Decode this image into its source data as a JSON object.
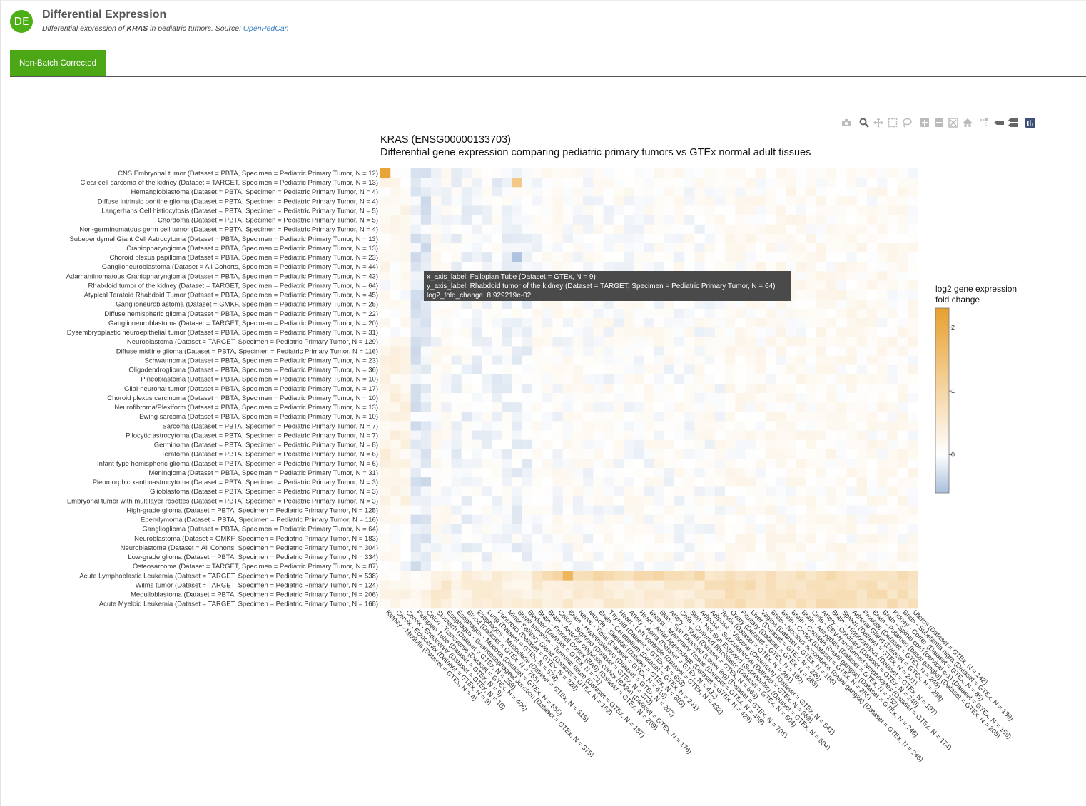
{
  "header": {
    "avatar_initials": "DE",
    "title": "Differential Expression",
    "subtitle_prefix": "Differential expression of ",
    "subtitle_gene": "KRAS",
    "subtitle_middle": " in pediatric tumors. Source: ",
    "subtitle_source": "OpenPedCan"
  },
  "tabs": [
    {
      "label": "Non-Batch Corrected",
      "active": true
    }
  ],
  "toolbar": {
    "icons": [
      "camera-icon",
      "zoom-icon",
      "pan-icon",
      "box-select-icon",
      "lasso-select-icon",
      "zoom-in-icon",
      "zoom-out-icon",
      "autoscale-icon",
      "reset-axes-icon",
      "spike-lines-icon",
      "hover-closest-icon",
      "hover-compare-icon",
      "plotly-logo-icon"
    ]
  },
  "colors": {
    "accent": "#4ca716",
    "high": "#e8a02f",
    "low": "#a9bfdc",
    "tooltip_bg": "#444444"
  },
  "chart_data": {
    "type": "heatmap",
    "title_line1": "KRAS (ENSG00000133703)",
    "title_line2": "Differential gene expression comparing pediatric primary tumors vs GTEx normal adult tissues",
    "colorbar": {
      "title_line1": "log2 gene expression",
      "title_line2": "fold change",
      "ticks": [
        0,
        1,
        2
      ],
      "range": [
        -0.6,
        2.3
      ]
    },
    "y_labels": [
      "CNS Embryonal tumor (Dataset = PBTA, Specimen = Pediatric Primary Tumor, N = 12)",
      "Clear cell sarcoma of the kidney (Dataset = TARGET, Specimen = Pediatric Primary Tumor, N = 13)",
      "Hemangioblastoma (Dataset = PBTA, Specimen = Pediatric Primary Tumor, N = 4)",
      "Diffuse intrinsic pontine glioma (Dataset = PBTA, Specimen = Pediatric Primary Tumor, N = 4)",
      "Langerhans Cell histiocytosis (Dataset = PBTA, Specimen = Pediatric Primary Tumor, N = 5)",
      "Chordoma (Dataset = PBTA, Specimen = Pediatric Primary Tumor, N = 5)",
      "Non-germinomatous germ cell tumor (Dataset = PBTA, Specimen = Pediatric Primary Tumor, N = 4)",
      "Subependymal Giant Cell Astrocytoma (Dataset = PBTA, Specimen = Pediatric Primary Tumor, N = 13)",
      "Craniopharyngioma (Dataset = PBTA, Specimen = Pediatric Primary Tumor, N = 13)",
      "Choroid plexus papilloma (Dataset = PBTA, Specimen = Pediatric Primary Tumor, N = 23)",
      "Ganglioneuroblastoma (Dataset = All Cohorts, Specimen = Pediatric Primary Tumor, N = 44)",
      "Adamantinomatous Craniopharyngioma (Dataset = PBTA, Specimen = Pediatric Primary Tumor, N = 43)",
      "Rhabdoid tumor of the kidney (Dataset = TARGET, Specimen = Pediatric Primary Tumor, N = 64)",
      "Atypical Teratoid Rhabdoid Tumor (Dataset = PBTA, Specimen = Pediatric Primary Tumor, N = 45)",
      "Ganglioneuroblastoma (Dataset = GMKF, Specimen = Pediatric Primary Tumor, N = 25)",
      "Diffuse hemispheric glioma (Dataset = PBTA, Specimen = Pediatric Primary Tumor, N = 22)",
      "Ganglioneuroblastoma (Dataset = TARGET, Specimen = Pediatric Primary Tumor, N = 20)",
      "Dysembryoplastic neuroepithelial tumor (Dataset = PBTA, Specimen = Pediatric Primary Tumor, N = 31)",
      "Neuroblastoma (Dataset = TARGET, Specimen = Pediatric Primary Tumor, N = 129)",
      "Diffuse midline glioma (Dataset = PBTA, Specimen = Pediatric Primary Tumor, N = 116)",
      "Schwannoma (Dataset = PBTA, Specimen = Pediatric Primary Tumor, N = 23)",
      "Oligodendroglioma (Dataset = PBTA, Specimen = Pediatric Primary Tumor, N = 36)",
      "Pineoblastoma (Dataset = PBTA, Specimen = Pediatric Primary Tumor, N = 10)",
      "Glial-neuronal tumor (Dataset = PBTA, Specimen = Pediatric Primary Tumor, N = 17)",
      "Choroid plexus carcinoma (Dataset = PBTA, Specimen = Pediatric Primary Tumor, N = 10)",
      "Neurofibroma/Plexiform (Dataset = PBTA, Specimen = Pediatric Primary Tumor, N = 13)",
      "Ewing sarcoma (Dataset = PBTA, Specimen = Pediatric Primary Tumor, N = 10)",
      "Sarcoma (Dataset = PBTA, Specimen = Pediatric Primary Tumor, N = 7)",
      "Pilocytic astrocytoma (Dataset = PBTA, Specimen = Pediatric Primary Tumor, N = 7)",
      "Germinoma (Dataset = PBTA, Specimen = Pediatric Primary Tumor, N = 8)",
      "Teratoma (Dataset = PBTA, Specimen = Pediatric Primary Tumor, N = 6)",
      "Infant-type hemispheric glioma (Dataset = PBTA, Specimen = Pediatric Primary Tumor, N = 6)",
      "Meningioma (Dataset = PBTA, Specimen = Pediatric Primary Tumor, N = 31)",
      "Pleomorphic xanthoastrocytoma (Dataset = PBTA, Specimen = Pediatric Primary Tumor, N = 3)",
      "Glioblastoma (Dataset = PBTA, Specimen = Pediatric Primary Tumor, N = 3)",
      "Embryonal tumor with multilayer rosettes (Dataset = PBTA, Specimen = Pediatric Primary Tumor, N = 3)",
      "High-grade glioma (Dataset = PBTA, Specimen = Pediatric Primary Tumor, N = 125)",
      "Ependymoma (Dataset = PBTA, Specimen = Pediatric Primary Tumor, N = 116)",
      "Ganglioglioma (Dataset = PBTA, Specimen = Pediatric Primary Tumor, N = 64)",
      "Neuroblastoma (Dataset = GMKF, Specimen = Pediatric Primary Tumor, N = 183)",
      "Neuroblastoma (Dataset = All Cohorts, Specimen = Pediatric Primary Tumor, N = 304)",
      "Low-grade glioma (Dataset = PBTA, Specimen = Pediatric Primary Tumor, N = 334)",
      "Osteosarcoma (Dataset = TARGET, Specimen = Pediatric Primary Tumor, N = 87)",
      "Acute Lymphoblastic Leukemia (Dataset = TARGET, Specimen = Pediatric Primary Tumor, N = 538)",
      "Wilms tumor (Dataset = TARGET, Specimen = Pediatric Primary Tumor, N = 124)",
      "Medulloblastoma (Dataset = PBTA, Specimen = Pediatric Primary Tumor, N = 206)",
      "Acute Myeloid Leukemia (Dataset = TARGET, Specimen = Pediatric Primary Tumor, N = 168)"
    ],
    "x_labels": [
      "Kidney - Medulla (Dataset = GTEx, N = 4)",
      "Cervix - Ectocervix (Dataset = GTEx, N = 9)",
      "Cervix - Endocervix (Dataset = GTEx, N = 10)",
      "Fallopian Tube (Dataset = GTEx, N = 9)",
      "Colon - Transverse (Dataset = GTEx, N = 406)",
      "Stomach (Dataset = GTEx, N = 359)",
      "Esophagus - Gastroesophageal Junction (Dataset = GTEx, N = 375)",
      "Esophagus - Mucosa (Dataset = GTEx, N = 555)",
      "Blood (Dataset = GTEx, N = 755)",
      "Esophagus - Muscularis (Dataset = GTEx, N = 515)",
      "Lung (Dataset = GTEx, N = 578)",
      "Pancreas (Dataset = GTEx, N = 328)",
      "Minor Salivary Gland (Dataset = GTEx, N = 162)",
      "Small Intestine - Terminal Ileum (Dataset = GTEx, N = 187)",
      "Bladder (Dataset = GTEx, N = 21)",
      "Brain - Frontal Cortex (BA9) (Dataset = GTEx, N = 209)",
      "Brain - Anterior cingulate cortex (BA24) (Dataset = GTEx, N = 176)",
      "Colon - Sigmoid (Dataset = GTEx, N = 373)",
      "Brain - Hypothalamus (Dataset = GTEx, N = 202)",
      "Nerve - Tibial (Dataset = GTEx, N = 619)",
      "Muscle - Skeletal (Dataset = GTEx, N = 803)",
      "Brain - Cerebellum (Dataset = GTEx, N = 241)",
      "Thyroid (Dataset = GTEx, N = 653)",
      "Heart - Left Ventricle (Dataset = GTEx, N = 432)",
      "Artery - Aorta (Dataset = GTEx, N = 432)",
      "Heart - Atrial Appendage (Dataset = GTEx, N = 429)",
      "Breast - Mammary Tissue (Dataset = GTEx, N = 459)",
      "Skin - Sun Exposed (Lower leg) (Dataset = GTEx, N = 701)",
      "Artery - Tibial (Dataset = GTEx, N = 663)",
      "Cells - Cultured fibroblasts (Dataset = GTEx, N = 504)",
      "Skin - Not Sun Exposed (Suprapubic) (Dataset = GTEx, N = 604)",
      "Adipose - Subcutaneous (Dataset = GTEx, N = 663)",
      "Adipose - Visceral (Omentum) (Dataset = GTEx, N = 541)",
      "Testis (Dataset = GTEx, N = 361)",
      "Ovary (Dataset = GTEx, N = 180)",
      "Pituitary (Dataset = GTEx, N = 283)",
      "Liver (Dataset = GTEx, N = 226)",
      "Vagina (Dataset = GTEx, N = 156)",
      "Brain - Nucleus accumbens (basal ganglia) (Dataset = GTEx, N = 246)",
      "Brain - Cortex (Dataset = GTEx, N = 255)",
      "Brain - Caudate (basal ganglia) (Dataset = GTEx, N = 246)",
      "Brain - Amygdala (Dataset = GTEx, N = 152)",
      "Cells - EBV-transformed lymphocytes (Dataset = GTEx, N = 174)",
      "Artery - Coronary (Dataset = GTEx, N = 240)",
      "Brain - Hippocampus (Dataset = GTEx, N = 197)",
      "Spleen (Dataset = GTEx, N = 241)",
      "Adrenal Gland (Dataset = GTEx, N = 258)",
      "Prostate (Dataset = GTEx, N = 245)",
      "Brain - Putamen (basal ganglia) (Dataset = GTEx, N = 205)",
      "Brain - Spinal cord (cervical c-1) (Dataset = GTEx, N = 159)",
      "Kidney - Cortex (Dataset = GTEx, N = 85)",
      "Brain - Substantia nigra (Dataset = GTEx, N = 139)",
      "Uterus (Dataset = GTEx, N = 142)"
    ],
    "highlight_cells": [
      {
        "row": "CNS Embryonal tumor (Dataset = PBTA, Specimen = Pediatric Primary Tumor, N = 12)",
        "col": "Kidney - Medulla (Dataset = GTEx, N = 4)",
        "value": 2.2
      },
      {
        "row": "Clear cell sarcoma of the kidney (Dataset = TARGET, Specimen = Pediatric Primary Tumor, N = 13)",
        "col": "Small Intestine - Terminal Ileum (Dataset = GTEx, N = 187)",
        "value": 1.3
      },
      {
        "row": "Choroid plexus papilloma (Dataset = PBTA, Specimen = Pediatric Primary Tumor, N = 23)",
        "col": "Small Intestine - Terminal Ileum (Dataset = GTEx, N = 187)",
        "value": -0.55
      },
      {
        "row": "Acute Lymphoblastic Leukemia (Dataset = TARGET, Specimen = Pediatric Primary Tumor, N = 538)",
        "col": "Brain - Hypothalamus (Dataset = GTEx, N = 202)",
        "value": 1.8
      }
    ],
    "tooltip": {
      "line1": "x_axis_label: Fallopian Tube (Dataset = GTEx, N = 9)",
      "line2": "y_axis_label: Rhabdoid tumor of the kidney (Dataset = TARGET, Specimen = Pediatric Primary Tumor, N = 64)",
      "line3": "log2_fold_change:  8.929219e-02",
      "value": 0.08929219
    }
  }
}
